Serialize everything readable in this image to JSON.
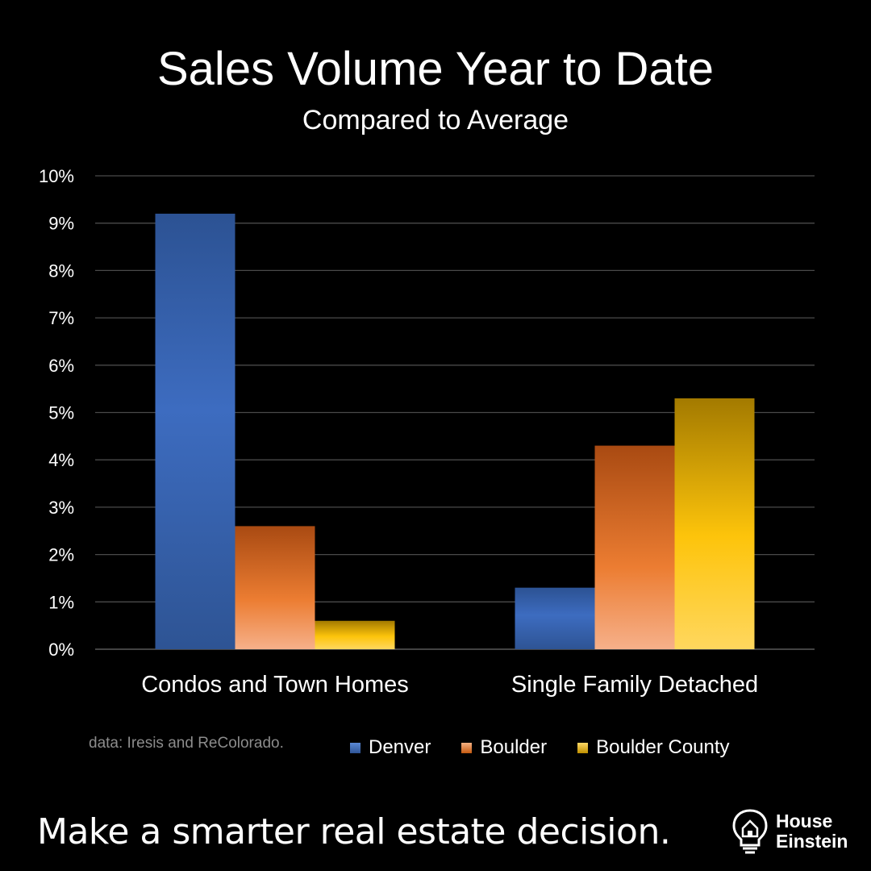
{
  "chart_data": {
    "type": "bar",
    "title": "Sales Volume Year to Date",
    "subtitle": "Compared to Average",
    "categories": [
      "Condos and Town Homes",
      "Single Family Detached"
    ],
    "series": [
      {
        "name": "Denver",
        "values": [
          9.2,
          1.3
        ],
        "color": "#4472c4"
      },
      {
        "name": "Boulder",
        "values": [
          2.6,
          4.3
        ],
        "color": "#ed7d31"
      },
      {
        "name": "Boulder County",
        "values": [
          0.6,
          5.3
        ],
        "color": "#ffc000"
      }
    ],
    "ylim": [
      0,
      10
    ],
    "yticks": [
      "0%",
      "1%",
      "2%",
      "3%",
      "4%",
      "5%",
      "6%",
      "7%",
      "8%",
      "9%",
      "10%"
    ],
    "grid": true,
    "legend_position": "bottom"
  },
  "source_note": "data: Iresis and ReColorado.",
  "tagline": "Make a smarter real estate decision.",
  "brand": {
    "line1": "House",
    "line2": "Einstein",
    "icon": "lightbulb-house-icon"
  }
}
